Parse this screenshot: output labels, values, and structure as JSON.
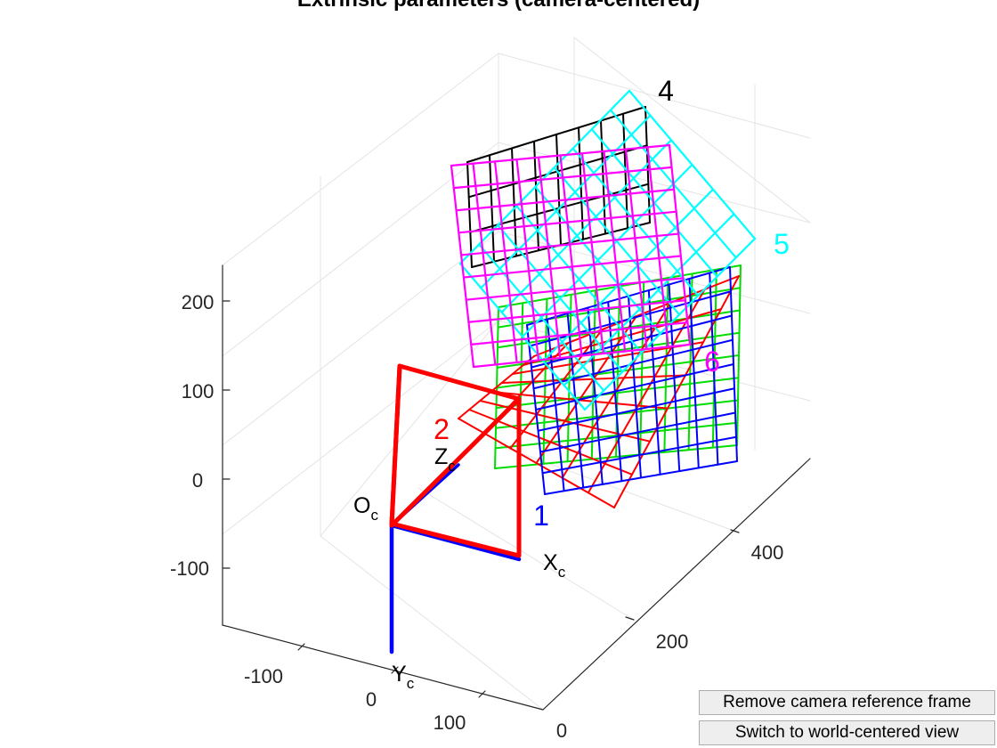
{
  "window": {
    "remove_button": "Remove camera reference frame",
    "switch_button": "Switch to world-centered view"
  },
  "chart_data": {
    "type": "3d-line",
    "title": "Extrinsic parameters (camera-centered)",
    "xlabel": "",
    "ylabel": "",
    "zlabel": "",
    "grid": true,
    "axes": {
      "x_ticks": [
        "-100",
        "0",
        "100"
      ],
      "z_ticks": [
        "0",
        "200",
        "400"
      ],
      "y_ticks": [
        "-100",
        "0",
        "100",
        "200"
      ]
    },
    "camera_frame": {
      "origin_label": "O",
      "origin_sub": "c",
      "x_label": "X",
      "x_sub": "c",
      "y_label": "Y",
      "y_sub": "c",
      "z_label": "Z",
      "z_sub": "c",
      "axis_color": "#0000ff",
      "frustum_color": "#ff0000"
    },
    "grids": [
      {
        "label": "1",
        "color": "#0000ff"
      },
      {
        "label": "2",
        "color": "#ff0000"
      },
      {
        "label": "3",
        "color": "#00dd00"
      },
      {
        "label": "4",
        "color": "#000000"
      },
      {
        "label": "5",
        "color": "#00ffff"
      },
      {
        "label": "6",
        "color": "#ff00ff"
      }
    ]
  }
}
